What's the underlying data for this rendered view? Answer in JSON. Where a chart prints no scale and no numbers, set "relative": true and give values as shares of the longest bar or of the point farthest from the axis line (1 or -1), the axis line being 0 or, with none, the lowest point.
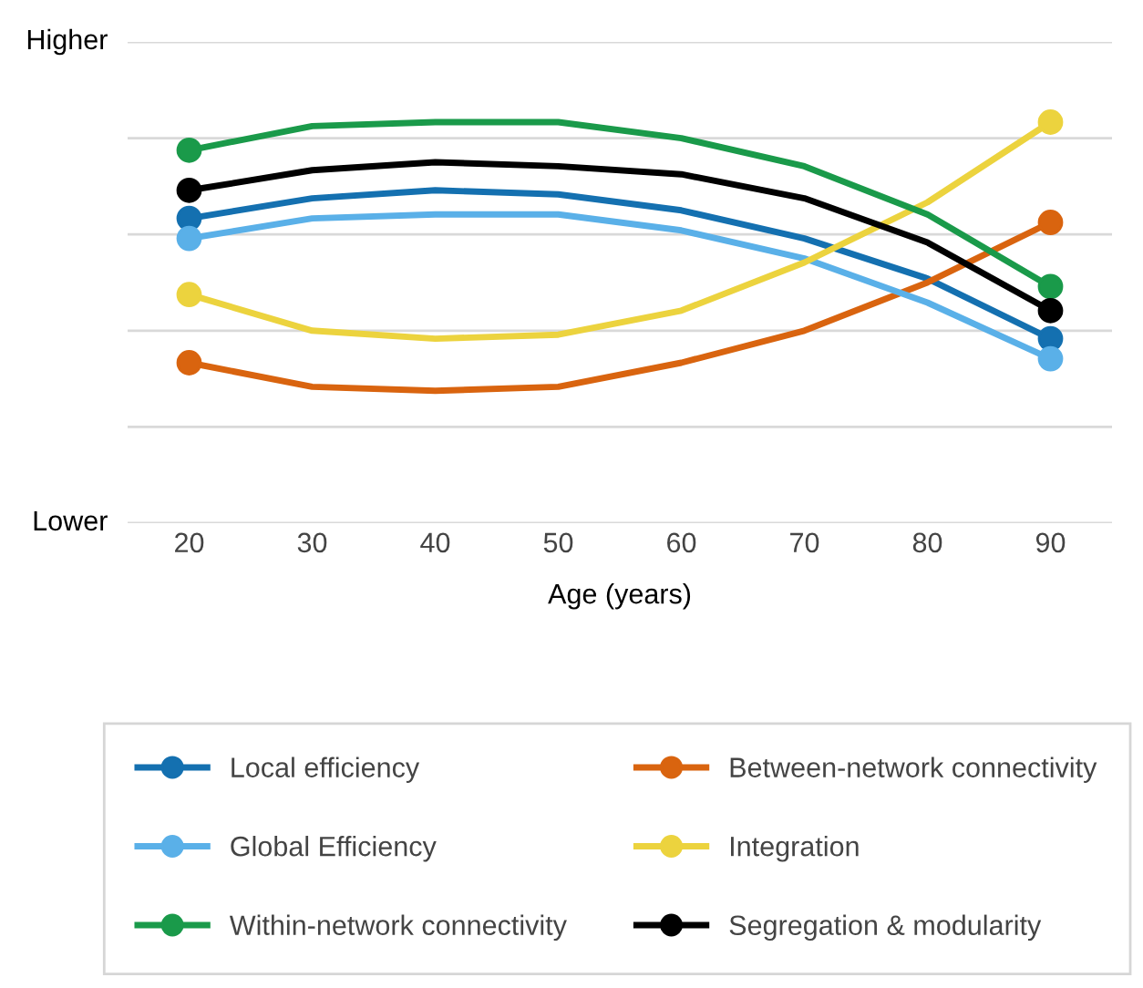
{
  "chart_data": {
    "type": "line",
    "xlabel": "Age (years)",
    "x": [
      20,
      30,
      40,
      50,
      60,
      70,
      80,
      90
    ],
    "xlim": [
      15,
      95
    ],
    "xticks": [
      20,
      30,
      40,
      50,
      60,
      70,
      80,
      90
    ],
    "relative": true,
    "annotations": [
      "Higher",
      "Lower"
    ],
    "grid": "y",
    "legend": "bottom",
    "line_style": "solid",
    "series": [
      {
        "name": "Local efficiency",
        "color": "#1470b0",
        "values": [
          0.76,
          0.81,
          0.83,
          0.82,
          0.78,
          0.71,
          0.61,
          0.46
        ]
      },
      {
        "name": "Between-network connectivity",
        "color": "#d9640f",
        "values": [
          0.4,
          0.34,
          0.33,
          0.34,
          0.4,
          0.48,
          0.6,
          0.75
        ]
      },
      {
        "name": "Global Efficiency",
        "color": "#5ab0e8",
        "values": [
          0.71,
          0.76,
          0.77,
          0.77,
          0.73,
          0.66,
          0.55,
          0.41
        ]
      },
      {
        "name": "Integration",
        "color": "#ecd33e",
        "values": [
          0.57,
          0.48,
          0.46,
          0.47,
          0.53,
          0.65,
          0.8,
          1
        ]
      },
      {
        "name": "Within-network connectivity",
        "color": "#1a9a4a",
        "values": [
          0.93,
          0.99,
          1,
          1,
          0.96,
          0.89,
          0.77,
          0.59
        ]
      },
      {
        "name": "Segregation & modularity",
        "color": "#000000",
        "values": [
          0.83,
          0.88,
          0.9,
          0.89,
          0.87,
          0.81,
          0.7,
          0.53
        ]
      },
      {
        "type": "scatter",
        "marker": "circle",
        "color": "#1470b0",
        "values": [
          0.76,
          null,
          null,
          null,
          null,
          null,
          null,
          0.46
        ]
      },
      {
        "type": "scatter",
        "marker": "circle",
        "color": "#d9640f",
        "values": [
          0.4,
          null,
          null,
          null,
          null,
          null,
          null,
          0.75
        ]
      },
      {
        "type": "scatter",
        "marker": "circle",
        "color": "#5ab0e8",
        "values": [
          0.71,
          null,
          null,
          null,
          null,
          null,
          null,
          0.41
        ]
      },
      {
        "type": "scatter",
        "marker": "circle",
        "color": "#ecd33e",
        "values": [
          0.57,
          null,
          null,
          null,
          null,
          null,
          null,
          1
        ]
      },
      {
        "type": "scatter",
        "marker": "circle",
        "color": "#1a9a4a",
        "values": [
          0.93,
          null,
          null,
          null,
          null,
          null,
          null,
          0.59
        ]
      },
      {
        "type": "scatter",
        "marker": "circle",
        "color": "#000000",
        "values": [
          0.83,
          null,
          null,
          null,
          null,
          null,
          null,
          0.53
        ]
      }
    ]
  }
}
